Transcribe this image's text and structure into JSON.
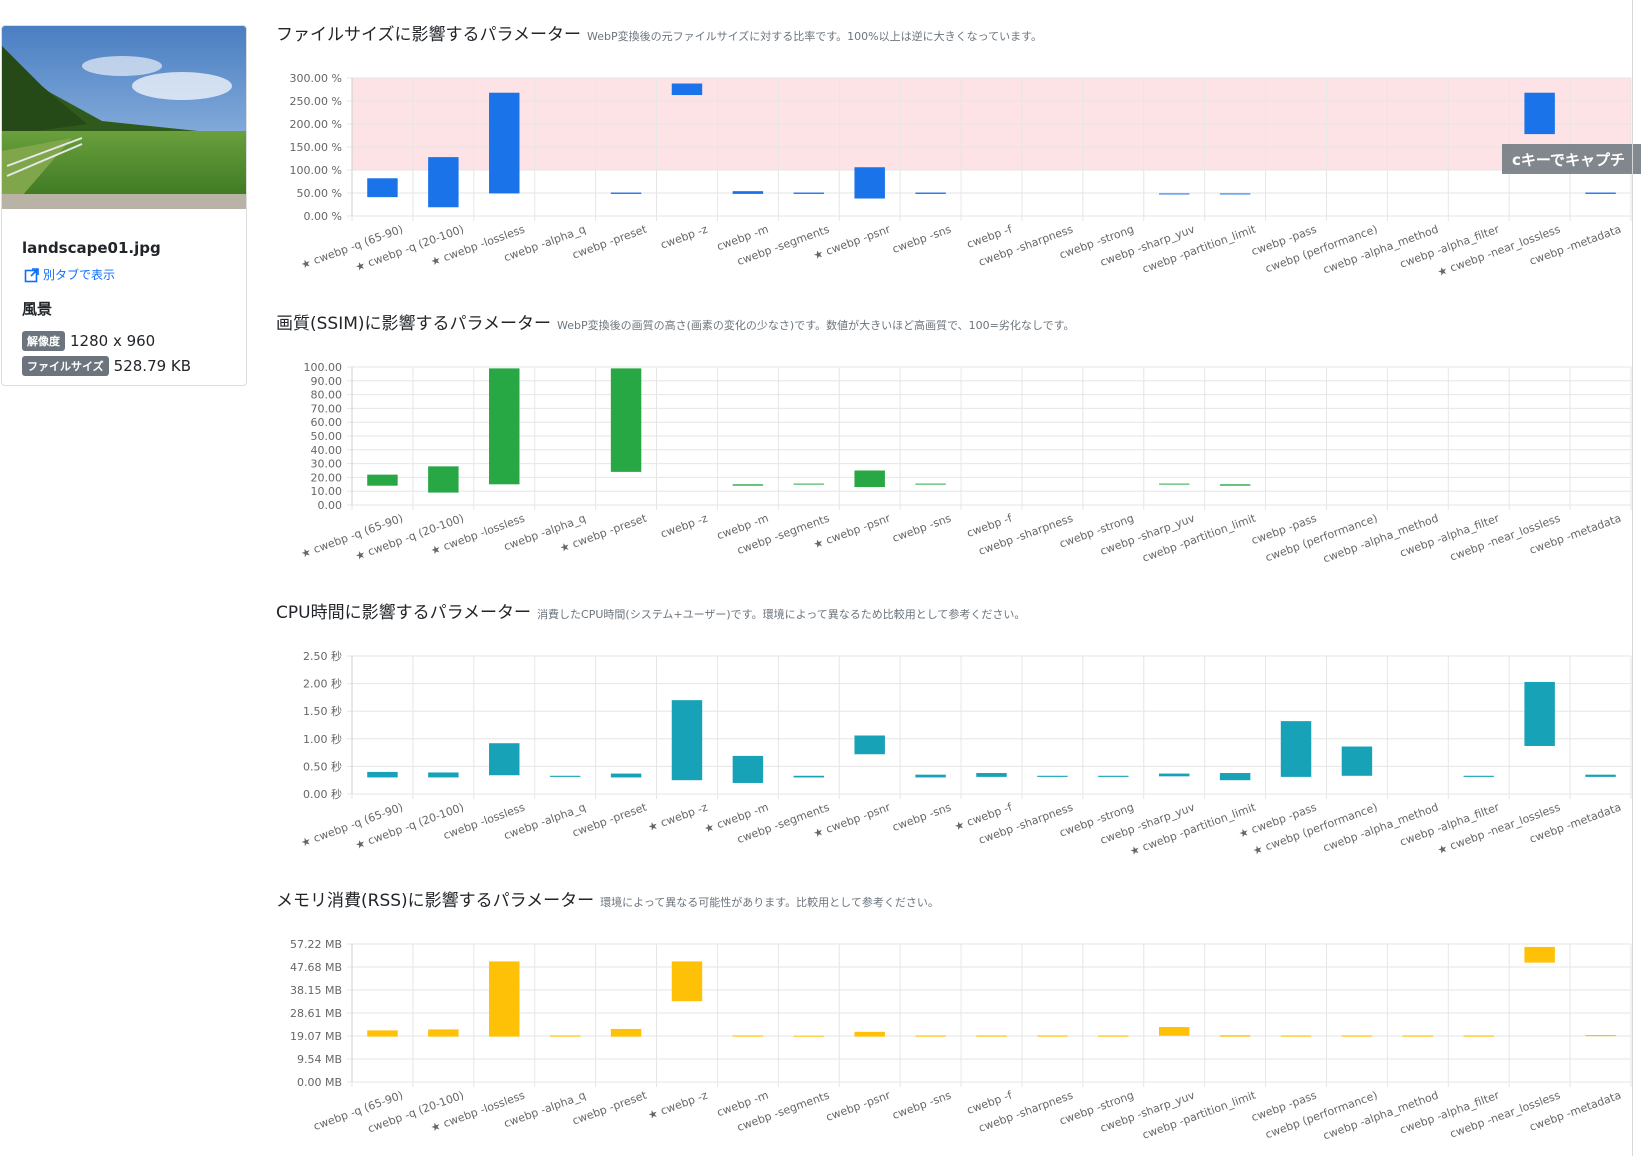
{
  "sidebar": {
    "file_name": "landscape01.jpg",
    "open_new_tab": "別タブで表示",
    "category": "風景",
    "resolution_badge": "解像度",
    "resolution": "1280 x 960",
    "filesize_badge": "ファイルサイズ",
    "filesize": "528.79 KB"
  },
  "tooltip": "cキーでキャプチ",
  "chart_data": [
    {
      "type": "bar",
      "variant": "floating",
      "title": "ファイルサイズに影響するパラメーター",
      "subtitle": "WebP変換後の元ファイルサイズに対する比率です。100%以上は逆に大きくなっています。",
      "color": "#1a73e8",
      "highlight_band": {
        "from": 100,
        "to": 300,
        "color": "#fde3e6"
      },
      "y_unit": " %",
      "ylim": [
        0,
        300
      ],
      "y_ticks": [
        "0.00 %",
        "50.00 %",
        "100.00 %",
        "150.00 %",
        "200.00 %",
        "250.00 %",
        "300.00 %"
      ],
      "categories": [
        "★ cwebp -q (65-90)",
        "★ cwebp -q (20-100)",
        "★ cwebp -lossless",
        "cwebp -alpha_q",
        "cwebp -preset",
        "cwebp -z",
        "cwebp -m",
        "cwebp -segments",
        "★ cwebp -psnr",
        "cwebp -sns",
        "cwebp -f",
        "cwebp -sharpness",
        "cwebp -strong",
        "cwebp -sharp_yuv",
        "cwebp -partition_limit",
        "cwebp -pass",
        "cwebp (performance)",
        "cwebp -alpha_method",
        "cwebp -alpha_filter",
        "★ cwebp -near_lossless",
        "cwebp -metadata"
      ],
      "ranges": [
        [
          41,
          82
        ],
        [
          19,
          128
        ],
        [
          49,
          268
        ],
        null,
        [
          48,
          51
        ],
        [
          263,
          288
        ],
        [
          48,
          54
        ],
        [
          48,
          51
        ],
        [
          38,
          106
        ],
        [
          48,
          51
        ],
        null,
        null,
        null,
        [
          48,
          49
        ],
        [
          48,
          49
        ],
        null,
        null,
        null,
        null,
        [
          178,
          268
        ],
        [
          48,
          51
        ]
      ]
    },
    {
      "type": "bar",
      "variant": "floating",
      "title": "画質(SSIM)に影響するパラメーター",
      "subtitle": "WebP変換後の画質の高さ(画素の変化の少なさ)です。数値が大きいほど高画質で、100=劣化なしです。",
      "color": "#28a745",
      "y_unit": "",
      "ylim": [
        0,
        100
      ],
      "y_ticks": [
        "0.00",
        "10.00",
        "20.00",
        "30.00",
        "40.00",
        "50.00",
        "60.00",
        "70.00",
        "80.00",
        "90.00",
        "100.00"
      ],
      "categories": [
        "★ cwebp -q (65-90)",
        "★ cwebp -q (20-100)",
        "★ cwebp -lossless",
        "cwebp -alpha_q",
        "★ cwebp -preset",
        "cwebp -z",
        "cwebp -m",
        "cwebp -segments",
        "★ cwebp -psnr",
        "cwebp -sns",
        "cwebp -f",
        "cwebp -sharpness",
        "cwebp -strong",
        "cwebp -sharp_yuv",
        "cwebp -partition_limit",
        "cwebp -pass",
        "cwebp (performance)",
        "cwebp -alpha_method",
        "cwebp -alpha_filter",
        "cwebp -near_lossless",
        "cwebp -metadata"
      ],
      "ranges": [
        [
          14,
          22
        ],
        [
          9,
          28
        ],
        [
          15,
          99
        ],
        null,
        [
          24,
          99
        ],
        null,
        [
          14,
          15
        ],
        [
          15,
          15.5
        ],
        [
          13,
          25
        ],
        [
          15,
          15.5
        ],
        null,
        null,
        null,
        [
          15,
          15.5
        ],
        [
          14,
          15
        ],
        null,
        null,
        null,
        null,
        null,
        null
      ]
    },
    {
      "type": "bar",
      "variant": "floating",
      "title": "CPU時間に影響するパラメーター",
      "subtitle": "消費したCPU時間(システム+ユーザー)です。環境によって異なるため比較用として参考ください。",
      "color": "#17a2b8",
      "y_unit": " 秒",
      "ylim": [
        0,
        2.5
      ],
      "y_ticks": [
        "0.00 秒",
        "0.50 秒",
        "1.00 秒",
        "1.50 秒",
        "2.00 秒",
        "2.50 秒"
      ],
      "categories": [
        "★ cwebp -q (65-90)",
        "★ cwebp -q (20-100)",
        "cwebp -lossless",
        "cwebp -alpha_q",
        "cwebp -preset",
        "★ cwebp -z",
        "★ cwebp -m",
        "cwebp -segments",
        "★ cwebp -psnr",
        "cwebp -sns",
        "★ cwebp -f",
        "cwebp -sharpness",
        "cwebp -strong",
        "cwebp -sharp_yuv",
        "★ cwebp -partition_limit",
        "★ cwebp -pass",
        "★ cwebp (performance)",
        "cwebp -alpha_method",
        "cwebp -alpha_filter",
        "★ cwebp -near_lossless",
        "cwebp -metadata"
      ],
      "ranges": [
        [
          0.3,
          0.4
        ],
        [
          0.3,
          0.39
        ],
        [
          0.34,
          0.92
        ],
        [
          0.31,
          0.33
        ],
        [
          0.3,
          0.37
        ],
        [
          0.25,
          1.7
        ],
        [
          0.2,
          0.69
        ],
        [
          0.3,
          0.33
        ],
        [
          0.72,
          1.06
        ],
        [
          0.3,
          0.35
        ],
        [
          0.31,
          0.38
        ],
        [
          0.31,
          0.33
        ],
        [
          0.31,
          0.33
        ],
        [
          0.32,
          0.37
        ],
        [
          0.25,
          0.38
        ],
        [
          0.31,
          1.32
        ],
        [
          0.33,
          0.86
        ],
        null,
        [
          0.31,
          0.33
        ],
        [
          0.87,
          2.03
        ],
        [
          0.31,
          0.35
        ]
      ]
    },
    {
      "type": "bar",
      "variant": "floating",
      "title": "メモリ消費(RSS)に影響するパラメーター",
      "subtitle": "環境によって異なる可能性があります。比較用として参考ください。",
      "color": "#ffc107",
      "y_unit": " MB",
      "ylim": [
        0,
        57.22
      ],
      "y_ticks": [
        "0.00 MB",
        "9.54 MB",
        "19.07 MB",
        "28.61 MB",
        "38.15 MB",
        "47.68 MB",
        "57.22 MB"
      ],
      "categories": [
        "cwebp -q (65-90)",
        "cwebp -q (20-100)",
        "★ cwebp -lossless",
        "cwebp -alpha_q",
        "cwebp -preset",
        "★ cwebp -z",
        "cwebp -m",
        "cwebp -segments",
        "cwebp -psnr",
        "cwebp -sns",
        "cwebp -f",
        "cwebp -sharpness",
        "cwebp -strong",
        "cwebp -sharp_yuv",
        "cwebp -partition_limit",
        "cwebp -pass",
        "cwebp (performance)",
        "cwebp -alpha_method",
        "cwebp -alpha_filter",
        "cwebp -near_lossless",
        "cwebp -metadata"
      ],
      "ranges": [
        [
          18.8,
          21.4
        ],
        [
          18.8,
          21.8
        ],
        [
          18.8,
          50
        ],
        [
          18.8,
          19.3
        ],
        [
          18.8,
          22
        ],
        [
          33.5,
          50
        ],
        [
          18.8,
          19.3
        ],
        [
          18.8,
          19.2
        ],
        [
          18.8,
          20.8
        ],
        [
          18.8,
          19.3
        ],
        [
          18.8,
          19.3
        ],
        [
          18.8,
          19.3
        ],
        [
          18.8,
          19.3
        ],
        [
          19.2,
          22.8
        ],
        [
          18.8,
          19.4
        ],
        [
          18.8,
          19.3
        ],
        [
          18.8,
          19.3
        ],
        [
          18.8,
          19.3
        ],
        [
          18.8,
          19.3
        ],
        [
          49.5,
          56
        ],
        [
          19,
          19.5
        ]
      ]
    }
  ]
}
